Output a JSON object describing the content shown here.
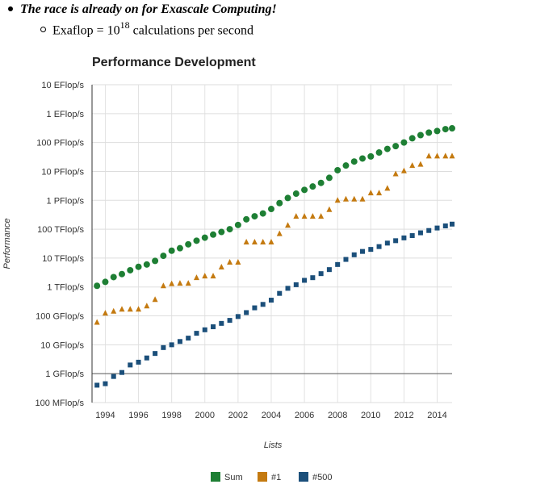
{
  "bullets": {
    "item1": "The race is already on for Exascale Computing!",
    "item2_prefix": "Exaflop = 10",
    "item2_sup": "18",
    "item2_suffix": " calculations per second"
  },
  "chart_data": {
    "type": "scatter",
    "title": "Performance Development",
    "xlabel": "Lists",
    "ylabel": "Performance",
    "y_scale": "log",
    "ylim": [
      0.1,
      10000000000
    ],
    "y_tick_values": [
      0.1,
      1,
      10,
      100,
      1000,
      10000,
      100000,
      1000000,
      10000000,
      100000000,
      1000000000,
      10000000000
    ],
    "y_tick_labels": [
      "100 MFlop/s",
      "1 GFlop/s",
      "10 GFlop/s",
      "100 GFlop/s",
      "1 TFlop/s",
      "10 TFlop/s",
      "100 TFlop/s",
      "1 PFlop/s",
      "10 PFlop/s",
      "100 PFlop/s",
      "1 EFlop/s",
      "10 EFlop/s"
    ],
    "y_unit": "GFlop/s",
    "xlim": [
      1993.2,
      2014.9
    ],
    "x_ticks": [
      1994,
      1996,
      1998,
      2000,
      2002,
      2004,
      2006,
      2008,
      2010,
      2012,
      2014
    ],
    "grid": true,
    "legend_position": "bottom",
    "series": [
      {
        "name": "Sum",
        "color": "#1e7f34",
        "marker": "circle",
        "x": [
          1993.5,
          1994,
          1994.5,
          1995,
          1995.5,
          1996,
          1996.5,
          1997,
          1997.5,
          1998,
          1998.5,
          1999,
          1999.5,
          2000,
          2000.5,
          2001,
          2001.5,
          2002,
          2002.5,
          2003,
          2003.5,
          2004,
          2004.5,
          2005,
          2005.5,
          2006,
          2006.5,
          2007,
          2007.5,
          2008,
          2008.5,
          2009,
          2009.5,
          2010,
          2010.5,
          2011,
          2011.5,
          2012,
          2012.5,
          2013,
          2013.5,
          2014,
          2014.5,
          2014.9
        ],
        "values": [
          1100,
          1500,
          2200,
          2800,
          3800,
          5000,
          6000,
          8000,
          12000,
          18000,
          22000,
          30000,
          40000,
          51000,
          65000,
          80000,
          100000,
          140000,
          220000,
          280000,
          350000,
          500000,
          800000,
          1200000,
          1700000,
          2300000,
          3000000,
          4000000,
          6000000,
          11000000,
          16000000,
          22000000,
          28000000,
          33000000,
          45000000,
          60000000,
          75000000,
          100000000,
          140000000,
          180000000,
          220000000,
          250000000,
          290000000,
          310000000
        ]
      },
      {
        "name": "#1",
        "color": "#c47a10",
        "marker": "triangle",
        "x": [
          1993.5,
          1994,
          1994.5,
          1995,
          1995.5,
          1996,
          1996.5,
          1997,
          1997.5,
          1998,
          1998.5,
          1999,
          1999.5,
          2000,
          2000.5,
          2001,
          2001.5,
          2002,
          2002.5,
          2003,
          2003.5,
          2004,
          2004.5,
          2005,
          2005.5,
          2006,
          2006.5,
          2007,
          2007.5,
          2008,
          2008.5,
          2009,
          2009.5,
          2010,
          2010.5,
          2011,
          2011.5,
          2012,
          2012.5,
          2013,
          2013.5,
          2014,
          2014.5,
          2014.9
        ],
        "values": [
          60,
          125,
          145,
          170,
          170,
          170,
          220,
          370,
          1100,
          1300,
          1340,
          1340,
          2100,
          2400,
          2400,
          4900,
          7200,
          7200,
          36000,
          36000,
          36000,
          36000,
          70000,
          137000,
          280000,
          280000,
          280000,
          280000,
          478000,
          1000000,
          1100000,
          1100000,
          1100000,
          1800000,
          1800000,
          2600000,
          8200000,
          10500000,
          16000000,
          17600000,
          34000000,
          34000000,
          34000000,
          34000000
        ]
      },
      {
        "name": "#500",
        "color": "#1b4f7a",
        "marker": "square",
        "x": [
          1993.5,
          1994,
          1994.5,
          1995,
          1995.5,
          1996,
          1996.5,
          1997,
          1997.5,
          1998,
          1998.5,
          1999,
          1999.5,
          2000,
          2000.5,
          2001,
          2001.5,
          2002,
          2002.5,
          2003,
          2003.5,
          2004,
          2004.5,
          2005,
          2005.5,
          2006,
          2006.5,
          2007,
          2007.5,
          2008,
          2008.5,
          2009,
          2009.5,
          2010,
          2010.5,
          2011,
          2011.5,
          2012,
          2012.5,
          2013,
          2013.5,
          2014,
          2014.5,
          2014.9
        ],
        "values": [
          0.4,
          0.45,
          0.8,
          1.1,
          2,
          2.5,
          3.5,
          5,
          8,
          10,
          13,
          17,
          25,
          33,
          42,
          55,
          70,
          95,
          130,
          190,
          250,
          350,
          600,
          900,
          1200,
          1700,
          2100,
          2900,
          4000,
          6000,
          9000,
          13000,
          17000,
          20000,
          25000,
          33000,
          40000,
          50000,
          60000,
          75000,
          90000,
          110000,
          130000,
          150000
        ]
      }
    ]
  }
}
